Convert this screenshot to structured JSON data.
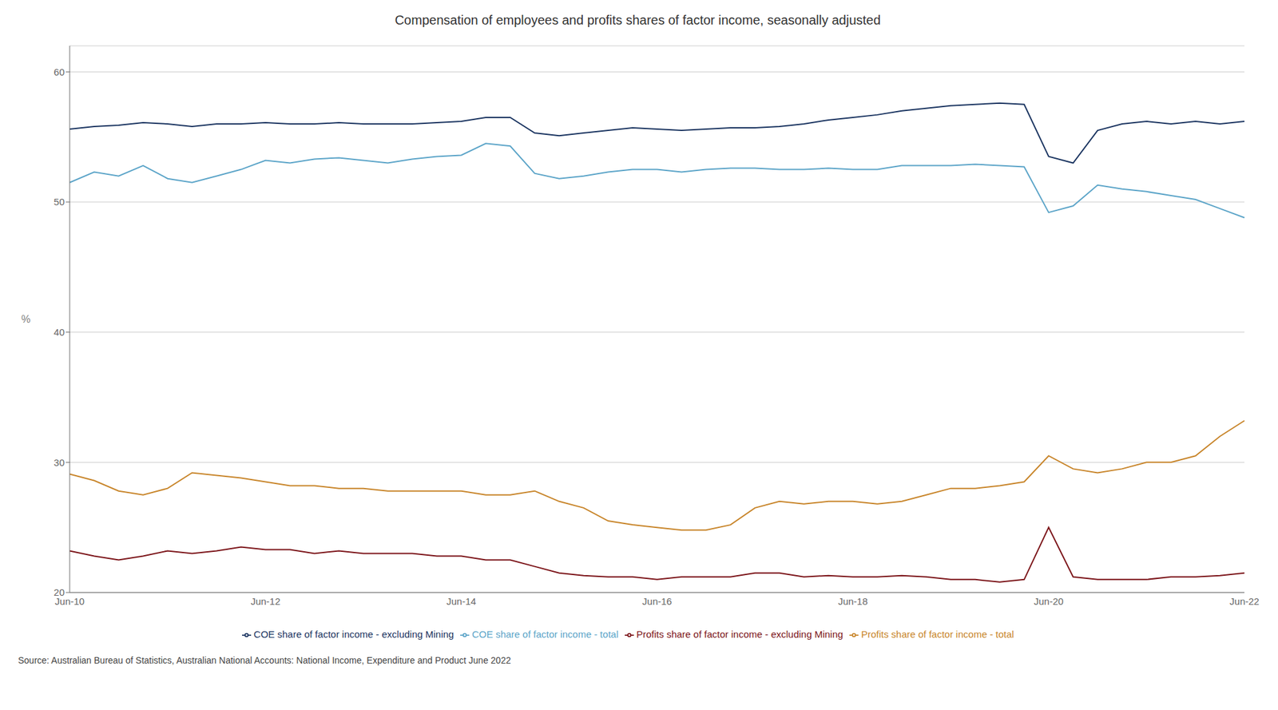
{
  "chart_data": {
    "type": "line",
    "title": "Compensation of employees and profits shares of factor income, seasonally adjusted",
    "ylabel": "%",
    "source": "Source: Australian Bureau of Statistics, Australian National Accounts: National Income, Expenditure and Product June 2022",
    "categories": [
      "Jun-10",
      null,
      null,
      null,
      null,
      null,
      null,
      null,
      "Jun-12",
      null,
      null,
      null,
      null,
      null,
      null,
      null,
      "Jun-14",
      null,
      null,
      null,
      null,
      null,
      null,
      null,
      "Jun-16",
      null,
      null,
      null,
      null,
      null,
      null,
      null,
      "Jun-18",
      null,
      null,
      null,
      null,
      null,
      null,
      null,
      "Jun-20",
      null,
      null,
      null,
      null,
      null,
      null,
      null,
      "Jun-22"
    ],
    "series": [
      {
        "name": "COE share of factor income - total",
        "color": "#5BA4C8",
        "values": [
          51.5,
          52.3,
          52.0,
          52.8,
          51.8,
          51.5,
          52.0,
          52.5,
          53.2,
          53.0,
          53.3,
          53.4,
          53.2,
          53.0,
          53.3,
          53.5,
          53.6,
          54.5,
          54.3,
          52.2,
          51.8,
          52.0,
          52.3,
          52.5,
          52.5,
          52.3,
          52.5,
          52.6,
          52.6,
          52.5,
          52.5,
          52.6,
          52.5,
          52.5,
          52.8,
          52.8,
          52.8,
          52.9,
          52.8,
          52.7,
          49.2,
          49.7,
          51.3,
          51.0,
          50.8,
          50.5,
          50.2,
          49.5,
          48.8
        ]
      },
      {
        "name": "COE share of factor income - excluding Mining",
        "color": "#1A3460",
        "values": [
          55.6,
          55.8,
          55.9,
          56.1,
          56.0,
          55.8,
          56.0,
          56.0,
          56.1,
          56.0,
          56.0,
          56.1,
          56.0,
          56.0,
          56.0,
          56.1,
          56.2,
          56.5,
          56.5,
          55.3,
          55.1,
          55.3,
          55.5,
          55.7,
          55.6,
          55.5,
          55.6,
          55.7,
          55.7,
          55.8,
          56.0,
          56.3,
          56.5,
          56.7,
          57.0,
          57.2,
          57.4,
          57.5,
          57.6,
          57.5,
          53.5,
          53.0,
          55.5,
          56.0,
          56.2,
          56.0,
          56.2,
          56.0,
          56.2
        ]
      },
      {
        "name": "Profits share of factor income - total",
        "color": "#C8852A",
        "values": [
          29.1,
          28.6,
          27.8,
          27.5,
          28.0,
          29.2,
          29.0,
          28.8,
          28.5,
          28.2,
          28.2,
          28.0,
          28.0,
          27.8,
          27.8,
          27.8,
          27.8,
          27.5,
          27.5,
          27.8,
          27.0,
          26.5,
          25.5,
          25.2,
          25.0,
          24.8,
          24.8,
          25.2,
          26.5,
          27.0,
          26.8,
          27.0,
          27.0,
          26.8,
          27.0,
          27.5,
          28.0,
          28.0,
          28.2,
          28.5,
          30.5,
          29.5,
          29.2,
          29.5,
          30.0,
          30.0,
          30.5,
          32.0,
          33.2
        ]
      },
      {
        "name": "Profits share of factor income - excluding Mining",
        "color": "#7B1318",
        "values": [
          23.2,
          22.8,
          22.5,
          22.8,
          23.2,
          23.0,
          23.2,
          23.5,
          23.3,
          23.3,
          23.0,
          23.2,
          23.0,
          23.0,
          23.0,
          22.8,
          22.8,
          22.5,
          22.5,
          22.0,
          21.5,
          21.3,
          21.2,
          21.2,
          21.0,
          21.2,
          21.2,
          21.2,
          21.5,
          21.5,
          21.2,
          21.3,
          21.2,
          21.2,
          21.3,
          21.2,
          21.0,
          21.0,
          20.8,
          21.0,
          25.0,
          21.2,
          21.0,
          21.0,
          21.0,
          21.2,
          21.2,
          21.3,
          21.5
        ]
      }
    ],
    "ylim": [
      20,
      62
    ],
    "yticks": [
      20,
      30,
      40,
      50,
      60
    ],
    "grid": true,
    "legend": "bottom"
  }
}
